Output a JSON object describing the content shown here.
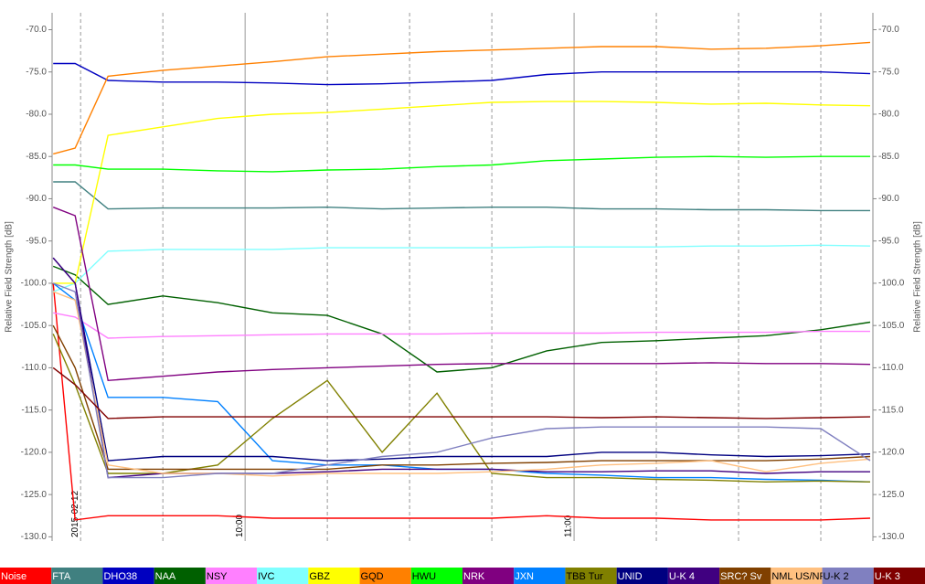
{
  "chart_data": {
    "type": "line",
    "y_label": "Relative Field Strength [dB]",
    "ylim": [
      -130.5,
      -68
    ],
    "yticks": [
      {
        "value": -70,
        "label": "-70.0"
      },
      {
        "value": -75,
        "label": "-75.0"
      },
      {
        "value": -80,
        "label": "-80.0"
      },
      {
        "value": -85,
        "label": "-85.0"
      },
      {
        "value": -90,
        "label": "-90.0"
      },
      {
        "value": -95,
        "label": "-95.0"
      },
      {
        "value": -100,
        "label": "-100.0"
      },
      {
        "value": -105,
        "label": "-105.0"
      },
      {
        "value": -110,
        "label": "-110.0"
      },
      {
        "value": -115,
        "label": "-115.0"
      },
      {
        "value": -120,
        "label": "-120.0"
      },
      {
        "value": -125,
        "label": "-125.0"
      },
      {
        "value": -130,
        "label": "-130.0"
      }
    ],
    "xlim": [
      24.8,
      174.5
    ],
    "xticks": [
      {
        "value": 30,
        "label": "2015-02-12"
      },
      {
        "value": 60,
        "label": "10:00"
      },
      {
        "value": 120,
        "label": "11:00"
      }
    ],
    "xminor_ticks": [
      45,
      75,
      90,
      105,
      135,
      150,
      165
    ],
    "x": [
      25,
      29,
      35,
      45,
      55,
      65,
      75,
      85,
      95,
      105,
      115,
      125,
      135,
      145,
      155,
      165,
      174
    ],
    "series": [
      {
        "name": "Noise",
        "color": "#ff0000",
        "values": [
          -100,
          -128,
          -127.5,
          -127.5,
          -127.5,
          -127.8,
          -127.8,
          -127.8,
          -127.8,
          -127.8,
          -127.5,
          -127.8,
          -127.8,
          -128,
          -128,
          -128,
          -127.8
        ]
      },
      {
        "name": "FTA",
        "color": "#408080",
        "values": [
          -88,
          -88,
          -91.2,
          -91.1,
          -91.1,
          -91.1,
          -91,
          -91.2,
          -91.1,
          -91,
          -91,
          -91.2,
          -91.2,
          -91.3,
          -91.3,
          -91.4,
          -91.4
        ]
      },
      {
        "name": "DHO38",
        "color": "#0000c0",
        "values": [
          -74,
          -74,
          -76,
          -76.2,
          -76.2,
          -76.3,
          -76.5,
          -76.4,
          -76.2,
          -76,
          -75.3,
          -75,
          -75,
          -75,
          -75,
          -75,
          -75.2
        ]
      },
      {
        "name": "NAA",
        "color": "#006000",
        "values": [
          -98,
          -99,
          -102.5,
          -101.5,
          -102.3,
          -103.5,
          -103.8,
          -106,
          -110.5,
          -110,
          -108,
          -107,
          -106.8,
          -106.5,
          -106.2,
          -105.5,
          -104.6
        ]
      },
      {
        "name": "NSY",
        "color": "#ff80ff",
        "values": [
          -103.5,
          -104,
          -106.5,
          -106.3,
          -106.2,
          -106.1,
          -106,
          -106,
          -106,
          -105.9,
          -105.9,
          -105.9,
          -105.8,
          -105.8,
          -105.8,
          -105.7,
          -105.7
        ]
      },
      {
        "name": "IVC",
        "color": "#80ffff",
        "values": [
          -101,
          -100,
          -96.2,
          -96,
          -96,
          -96,
          -95.8,
          -95.8,
          -95.8,
          -95.8,
          -95.7,
          -95.7,
          -95.7,
          -95.6,
          -95.6,
          -95.5,
          -95.6
        ]
      },
      {
        "name": "GBZ",
        "color": "#ffff00",
        "values": [
          -100,
          -100,
          -82.5,
          -81.5,
          -80.5,
          -80,
          -79.8,
          -79.4,
          -79,
          -78.6,
          -78.5,
          -78.5,
          -78.6,
          -78.8,
          -78.7,
          -78.9,
          -79
        ]
      },
      {
        "name": "GQD",
        "color": "#ff8000",
        "values": [
          -84.7,
          -84,
          -75.5,
          -74.8,
          -74.3,
          -73.8,
          -73.2,
          -72.9,
          -72.6,
          -72.4,
          -72.2,
          -72,
          -72,
          -72.3,
          -72.2,
          -71.9,
          -71.5
        ]
      },
      {
        "name": "HWU",
        "color": "#00ff00",
        "values": [
          -86,
          -86,
          -86.5,
          -86.5,
          -86.7,
          -86.8,
          -86.6,
          -86.5,
          -86.2,
          -86,
          -85.5,
          -85.3,
          -85.1,
          -85,
          -85.1,
          -85,
          -85
        ]
      },
      {
        "name": "NRK",
        "color": "#800080",
        "values": [
          -91,
          -92,
          -111.5,
          -111,
          -110.5,
          -110.2,
          -110,
          -109.8,
          -109.6,
          -109.5,
          -109.5,
          -109.5,
          -109.5,
          -109.4,
          -109.5,
          -109.5,
          -109.6
        ]
      },
      {
        "name": "JXN",
        "color": "#0080ff",
        "values": [
          -100,
          -102,
          -113.5,
          -113.5,
          -114,
          -121,
          -121.5,
          -121.5,
          -122,
          -122,
          -122.5,
          -122.7,
          -123,
          -123,
          -123.2,
          -123.3,
          -123.5
        ]
      },
      {
        "name": "TBB Tur",
        "color": "#808000",
        "values": [
          -106,
          -112,
          -122.5,
          -122.5,
          -121.5,
          -116,
          -111.5,
          -120,
          -113,
          -122.5,
          -123,
          -123,
          -123.2,
          -123.3,
          -123.5,
          -123.4,
          -123.5
        ]
      },
      {
        "name": "UNID",
        "color": "#000080",
        "values": [
          -97,
          -100,
          -121,
          -120.5,
          -120.5,
          -120.5,
          -121,
          -120.8,
          -120.5,
          -120.5,
          -120.5,
          -120,
          -120,
          -120.3,
          -120.5,
          -120.4,
          -120.2
        ]
      },
      {
        "name": "U-K 4",
        "color": "#400080",
        "values": [
          -97,
          -100,
          -123,
          -122.5,
          -122.5,
          -122.5,
          -122.3,
          -122,
          -122,
          -122,
          -122.3,
          -122.3,
          -122.2,
          -122.2,
          -122.5,
          -122.3,
          -122.3
        ]
      },
      {
        "name": "SRC? Sv",
        "color": "#804000",
        "values": [
          -105,
          -110,
          -122,
          -122,
          -122,
          -122,
          -122,
          -121.5,
          -121.5,
          -121.3,
          -121.2,
          -121,
          -121,
          -121,
          -121,
          -120.8,
          -120.5
        ]
      },
      {
        "name": "NML US/NPM",
        "color": "#ffc080",
        "values": [
          -101,
          -102,
          -121.5,
          -122.5,
          -122.5,
          -122.8,
          -122.5,
          -122.5,
          -122.5,
          -122.3,
          -122,
          -121.5,
          -121.3,
          -121,
          -122.3,
          -121.3,
          -120.8
        ]
      },
      {
        "name": "U-K 2",
        "color": "#8080c0",
        "values": [
          -100,
          -101,
          -123,
          -123,
          -122.5,
          -122.5,
          -121.5,
          -120.5,
          -120,
          -118.3,
          -117.2,
          -117,
          -117,
          -117,
          -117,
          -117.2,
          -121
        ]
      },
      {
        "name": "U-K 3",
        "color": "#800000",
        "values": [
          -110,
          -112,
          -116,
          -115.8,
          -115.8,
          -115.8,
          -115.8,
          -115.8,
          -115.8,
          -115.8,
          -115.8,
          -115.9,
          -115.8,
          -115.9,
          -116,
          -115.9,
          -115.8
        ]
      }
    ]
  }
}
